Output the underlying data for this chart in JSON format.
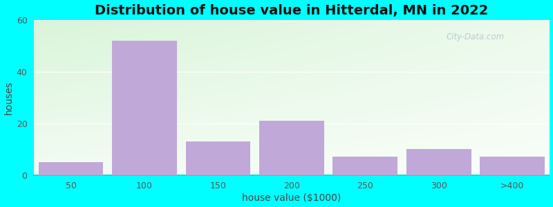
{
  "title": "Distribution of house value in Hitterdal, MN in 2022",
  "xlabel": "house value ($1000)",
  "ylabel": "houses",
  "categories": [
    "50",
    "100",
    "150",
    "200",
    "250",
    "300",
    ">400"
  ],
  "values": [
    5,
    52,
    13,
    21,
    7,
    10,
    7
  ],
  "bar_color": "#c0a8d8",
  "ylim": [
    0,
    60
  ],
  "yticks": [
    0,
    20,
    40,
    60
  ],
  "background_outer": "#00ffff",
  "plot_bg_topleft": "#cce8cc",
  "plot_bg_right": "#f0faf0",
  "plot_bg_bottom": "#ffffff",
  "title_fontsize": 14,
  "axis_label_fontsize": 10,
  "tick_fontsize": 9,
  "watermark_text": "City-Data.com"
}
